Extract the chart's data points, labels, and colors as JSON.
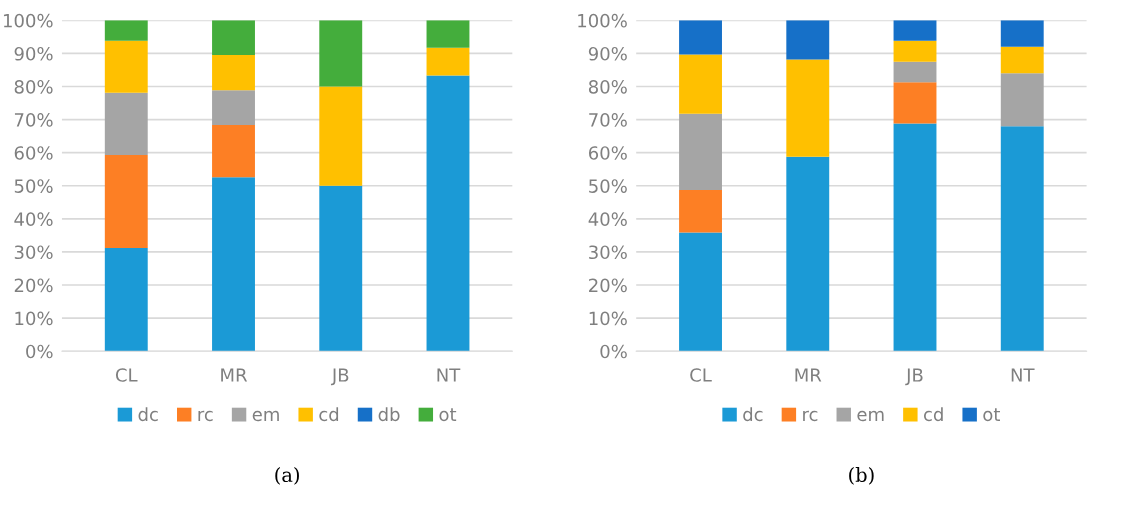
{
  "chart_data": [
    {
      "type": "bar",
      "title": "(a)",
      "stacked": true,
      "categories": [
        "CL",
        "MR",
        "JB",
        "NT"
      ],
      "ylim": [
        0,
        100
      ],
      "yticks": [
        {
          "value": 0,
          "label": "0%"
        },
        {
          "value": 10,
          "label": "10%"
        },
        {
          "value": 20,
          "label": "20%"
        },
        {
          "value": 30,
          "label": "30%"
        },
        {
          "value": 40,
          "label": "40%"
        },
        {
          "value": 50,
          "label": "50%"
        },
        {
          "value": 60,
          "label": "60%"
        },
        {
          "value": 70,
          "label": "70%"
        },
        {
          "value": 80,
          "label": "80%"
        },
        {
          "value": 90,
          "label": "90%"
        },
        {
          "value": 100,
          "label": "100%"
        }
      ],
      "grid": "y",
      "legend": "bottom",
      "series": [
        {
          "name": "dc",
          "color": "#1b9ad6",
          "values": [
            31.2,
            52.6,
            50,
            83.3
          ]
        },
        {
          "name": "rc",
          "color": "#fd7f24",
          "values": [
            28.1,
            15.8,
            0,
            0
          ]
        },
        {
          "name": "em",
          "color": "#a5a5a5",
          "values": [
            18.8,
            10.5,
            0,
            0
          ]
        },
        {
          "name": "cd",
          "color": "#ffc000",
          "values": [
            15.7,
            10.6,
            30,
            8.4
          ]
        },
        {
          "name": "db",
          "color": "#1670c8",
          "values": [
            0,
            0,
            0,
            0
          ]
        },
        {
          "name": "ot",
          "color": "#44ad3c",
          "values": [
            6.2,
            10.5,
            20,
            8.3
          ]
        }
      ]
    },
    {
      "type": "bar",
      "title": "(b)",
      "stacked": true,
      "categories": [
        "CL",
        "MR",
        "JB",
        "NT"
      ],
      "ylim": [
        0,
        100
      ],
      "yticks": [
        {
          "value": 0,
          "label": "0%"
        },
        {
          "value": 10,
          "label": "10%"
        },
        {
          "value": 20,
          "label": "20%"
        },
        {
          "value": 30,
          "label": "30%"
        },
        {
          "value": 40,
          "label": "40%"
        },
        {
          "value": 50,
          "label": "50%"
        },
        {
          "value": 60,
          "label": "60%"
        },
        {
          "value": 70,
          "label": "70%"
        },
        {
          "value": 80,
          "label": "80%"
        },
        {
          "value": 90,
          "label": "90%"
        },
        {
          "value": 100,
          "label": "100%"
        }
      ],
      "grid": "y",
      "legend": "bottom",
      "series": [
        {
          "name": "dc",
          "color": "#1b9ad6",
          "values": [
            35.9,
            58.8,
            68.8,
            68
          ]
        },
        {
          "name": "rc",
          "color": "#fd7f24",
          "values": [
            12.8,
            0,
            12.5,
            0
          ]
        },
        {
          "name": "em",
          "color": "#a5a5a5",
          "values": [
            23.1,
            0,
            6.2,
            16
          ]
        },
        {
          "name": "cd",
          "color": "#ffc000",
          "values": [
            17.9,
            29.4,
            6.3,
            8
          ]
        },
        {
          "name": "ot",
          "color": "#1670c8",
          "values": [
            10.3,
            11.8,
            6.2,
            8
          ]
        }
      ]
    }
  ]
}
